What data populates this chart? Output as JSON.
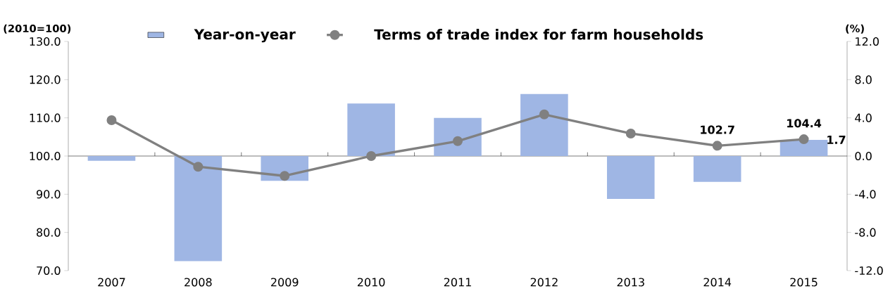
{
  "chart_data": {
    "type": "bar",
    "categories": [
      "2007",
      "2008",
      "2009",
      "2010",
      "2011",
      "2012",
      "2013",
      "2014",
      "2015"
    ],
    "series": [
      {
        "name": "Year-on-year",
        "axis": "y2",
        "color": "#9fb6e4",
        "values": [
          -0.5,
          -11.0,
          -2.6,
          5.5,
          4.0,
          6.5,
          -4.5,
          -2.7,
          1.7
        ],
        "value_labels": [
          null,
          null,
          null,
          null,
          null,
          null,
          null,
          null,
          "1.7"
        ]
      },
      {
        "name": "Terms of trade index for farm households",
        "type": "line",
        "axis": "y",
        "color": "#808080",
        "marker": "circle",
        "values": [
          109.4,
          97.2,
          94.8,
          100.0,
          103.9,
          110.9,
          105.9,
          102.7,
          104.4
        ],
        "value_labels": [
          null,
          null,
          null,
          null,
          null,
          null,
          null,
          "102.7",
          "104.4"
        ]
      }
    ],
    "ylabel": "(2010=100)",
    "y2label": "(%)",
    "ylim": [
      70,
      130
    ],
    "yticks": [
      {
        "value": 70,
        "label": "70.0"
      },
      {
        "value": 80,
        "label": "80.0"
      },
      {
        "value": 90,
        "label": "90.0"
      },
      {
        "value": 100,
        "label": "100.0"
      },
      {
        "value": 110,
        "label": "110.0"
      },
      {
        "value": 120,
        "label": "120.0"
      },
      {
        "value": 130,
        "label": "130.0"
      }
    ],
    "y2lim": [
      -12,
      12
    ],
    "y2ticks": [
      {
        "value": -12,
        "label": "-12.0"
      },
      {
        "value": -8,
        "label": "-8.0"
      },
      {
        "value": -4,
        "label": "-4.0"
      },
      {
        "value": 0,
        "label": "0.0"
      },
      {
        "value": 4,
        "label": "4.0"
      },
      {
        "value": 8,
        "label": "8.0"
      },
      {
        "value": 12,
        "label": "12.0"
      }
    ],
    "legend": "top"
  }
}
